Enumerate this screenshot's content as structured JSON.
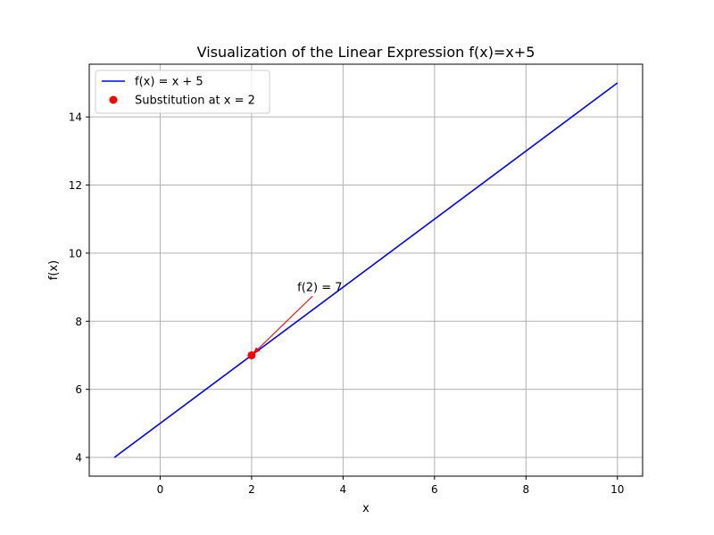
{
  "chart_data": {
    "type": "line",
    "title": "Visualization of the Linear Expression f(x)=x+5",
    "xlabel": "x",
    "ylabel": "f(x)",
    "xlim": [
      -1.55,
      10.55
    ],
    "ylim": [
      3.45,
      15.55
    ],
    "xticks": [
      0,
      2,
      4,
      6,
      8,
      10
    ],
    "yticks": [
      4,
      6,
      8,
      10,
      12,
      14
    ],
    "grid": true,
    "legend_position": "top-left",
    "series": [
      {
        "name": "f(x) = x + 5",
        "kind": "line",
        "color": "#0000ff",
        "x": [
          -1,
          10
        ],
        "y": [
          4,
          15
        ]
      },
      {
        "name": "Substitution at x = 2",
        "kind": "scatter",
        "color": "#ff0000",
        "x": [
          2
        ],
        "y": [
          7
        ]
      }
    ],
    "annotations": [
      {
        "text": "f(2) = 7",
        "text_x": 3,
        "text_y": 9,
        "point_x": 2,
        "point_y": 7,
        "arrow_color": "#ff0000"
      }
    ]
  }
}
